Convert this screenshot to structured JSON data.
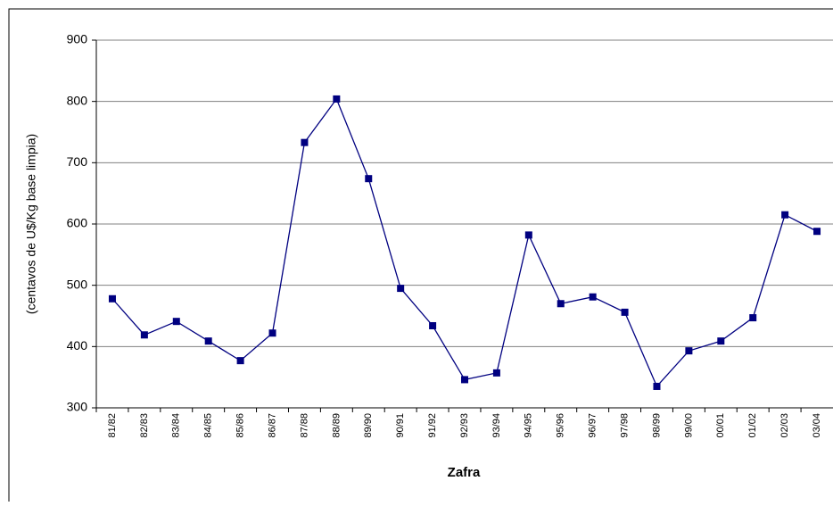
{
  "chart_data": {
    "type": "line",
    "x_label": "Zafra",
    "y_label": "(centavos de U$/Kg base limpia)",
    "categories": [
      "81/82",
      "82/83",
      "83/84",
      "84/85",
      "85/86",
      "86/87",
      "87/88",
      "88/89",
      "89/90",
      "90/91",
      "91/92",
      "92/93",
      "93/94",
      "94/95",
      "95/96",
      "96/97",
      "97/98",
      "98/99",
      "99/00",
      "00/01",
      "01/02",
      "02/03",
      "03/04"
    ],
    "series": [
      {
        "color": "#000080",
        "values": [
          478,
          419,
          441,
          409,
          377,
          422,
          733,
          804,
          674,
          495,
          434,
          346,
          357,
          582,
          470,
          481,
          456,
          335,
          393,
          409,
          447,
          615,
          588
        ]
      }
    ],
    "ylim": [
      300,
      900
    ],
    "yticks": [
      300,
      400,
      500,
      600,
      700,
      800,
      900
    ],
    "grid": true
  }
}
